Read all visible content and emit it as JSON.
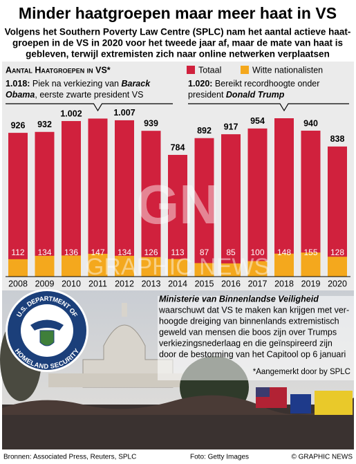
{
  "title": "Minder haatgroepen maar meer haat in VS",
  "subtitle": [
    "Volgens het Southern Poverty Law Centre (SPLC) nam het aantal actieve haat-",
    "groepen in de VS in 2020 voor het tweede jaar af, maar de mate van haat is",
    "gebleven, terwijl extremisten zich naar online netwerken verplaatsen"
  ],
  "chart_data": {
    "type": "bar",
    "title": "Aantal Haatgroepen in VS*",
    "categories": [
      "2008",
      "2009",
      "2010",
      "2011",
      "2012",
      "2013",
      "2014",
      "2015",
      "2016",
      "2017",
      "2018",
      "2019",
      "2020"
    ],
    "series": [
      {
        "name": "Totaal",
        "color": "#d0213d",
        "values": [
          926,
          932,
          1002,
          1018,
          1007,
          939,
          784,
          892,
          917,
          954,
          1020,
          940,
          838
        ],
        "value_labels": [
          "926",
          "932",
          "1.002",
          null,
          "1.007",
          "939",
          "784",
          "892",
          "917",
          "954",
          null,
          "940",
          "838"
        ]
      },
      {
        "name": "Witte nationalisten",
        "color": "#f4a81d",
        "values": [
          112,
          134,
          136,
          147,
          134,
          126,
          113,
          87,
          85,
          100,
          148,
          155,
          128
        ]
      }
    ],
    "annotations": [
      {
        "lines": [
          [
            "1.018:",
            " Piek na verkiezing van ",
            "Barack"
          ],
          [
            "Obama",
            ", eerste zwarte president VS"
          ]
        ]
      },
      {
        "lines": [
          [
            "1.020:",
            " Bereikt recordhoogte onder"
          ],
          [
            "president ",
            "Donald Trump"
          ]
        ]
      }
    ]
  },
  "watermark": [
    "GN",
    "GRAPHIC NEWS"
  ],
  "seal": [
    "U.S. DEPARTMENT OF",
    "HOMELAND SECURITY"
  ],
  "body": {
    "heading": "Ministerie van Binnenlandse Veiligheid",
    "lines": [
      "waarschuwt dat VS te maken kan krijgen met ver-",
      "hoogde dreiging van binnenlands extremistisch",
      "geweld van mensen die boos zijn over Trumps",
      "verkiezingsnederlaag en die geïnspireerd zijn",
      "door de bestorming van het Capitool op 6 januari"
    ],
    "footnote": "*Aangemerkt door by SPLC"
  },
  "footer": {
    "sources": "Bronnen: Associated Press, Reuters, SPLC",
    "photo": "Foto: Getty Images",
    "credit": "© GRAPHIC NEWS"
  }
}
